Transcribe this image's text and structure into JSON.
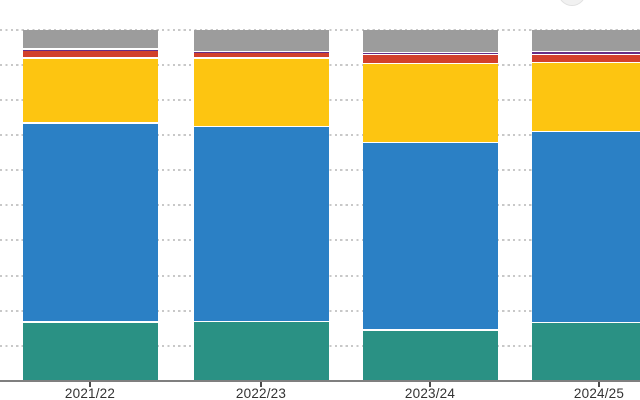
{
  "chart_data": {
    "type": "bar",
    "stacking": "percent",
    "title": "",
    "xlabel": "",
    "ylabel": "",
    "ylim": [
      0,
      100
    ],
    "legend_position": "none",
    "categories": [
      "2021/22",
      "2022/23",
      "2023/24",
      "2024/25"
    ],
    "series": [
      {
        "name": "teal",
        "color": "#2A9184",
        "values": [
          17.0,
          17.2,
          14.7,
          16.8
        ]
      },
      {
        "name": "blue",
        "color": "#2B80C5",
        "values": [
          56.6,
          55.3,
          53.4,
          54.3
        ]
      },
      {
        "name": "yellow",
        "color": "#FDC511",
        "values": [
          18.5,
          19.6,
          22.4,
          19.7
        ]
      },
      {
        "name": "red",
        "color": "#D2402C",
        "values": [
          2.1,
          1.8,
          2.6,
          2.2
        ]
      },
      {
        "name": "purple",
        "color": "#662D86",
        "values": [
          0.4,
          0.1,
          0.45,
          1.0
        ]
      },
      {
        "name": "gray",
        "color": "#9C9C9C",
        "values": [
          5.4,
          6.0,
          6.45,
          6.0
        ]
      }
    ],
    "gridlines": {
      "orientation": "horizontal",
      "style": "dashed",
      "step_pct": 10,
      "color": "#c8c8c8"
    },
    "axis": {
      "line_color": "#7f7f7f",
      "tick_color": "#4a4a4a",
      "label_color": "#333333"
    },
    "segment_gap_color": "#ffffff"
  },
  "decor": {
    "partial_circle_fill": "#f1f1f1",
    "partial_circle_border": "#e0e0e0"
  }
}
